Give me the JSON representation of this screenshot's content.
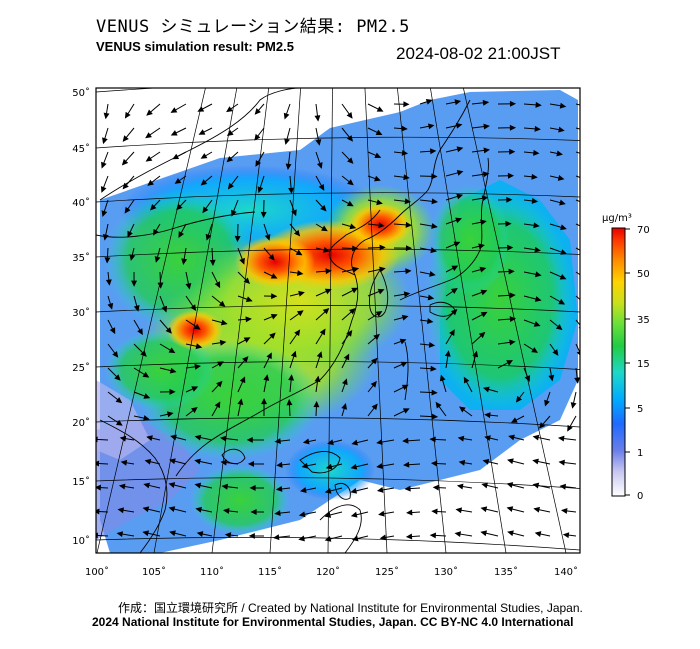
{
  "header": {
    "title_jp": "VENUS シミュレーション結果: PM2.5",
    "title_en": "VENUS simulation result: PM2.5",
    "timestamp": "2024-08-02 21:00JST"
  },
  "map": {
    "lat_labels": [
      "50˚",
      "45˚",
      "40˚",
      "35˚",
      "30˚",
      "25˚",
      "20˚",
      "15˚",
      "10˚"
    ],
    "lon_labels": [
      "100˚",
      "105˚",
      "110˚",
      "115˚",
      "120˚",
      "125˚",
      "130˚",
      "135˚",
      "140˚"
    ],
    "lat_values": [
      50,
      45,
      40,
      35,
      30,
      25,
      20,
      15,
      10
    ],
    "lon_values": [
      100,
      105,
      110,
      115,
      120,
      125,
      130,
      135,
      140
    ],
    "colors": {
      "ocean": "#ffffff",
      "land_line": "#000000",
      "grid": "#000000"
    }
  },
  "colorbar": {
    "unit": "μg/m³",
    "ticks": [
      "70",
      "50",
      "35",
      "15",
      "5",
      "1",
      "0"
    ],
    "colors": [
      "#ffffff",
      "#c8c8f0",
      "#6a7ee8",
      "#1e6aff",
      "#00aaff",
      "#1ed8c8",
      "#22cc44",
      "#66e03a",
      "#c8e01e",
      "#ffd200",
      "#ff8c00",
      "#ff3c00",
      "#e60000"
    ]
  },
  "footer": {
    "credit_line": "作成：国立環境研究所 / Created by National Institute for Environmental Studies, Japan.",
    "copyright_line": "2024 National Institute for Environmental Studies, Japan. CC BY-NC 4.0 International"
  }
}
